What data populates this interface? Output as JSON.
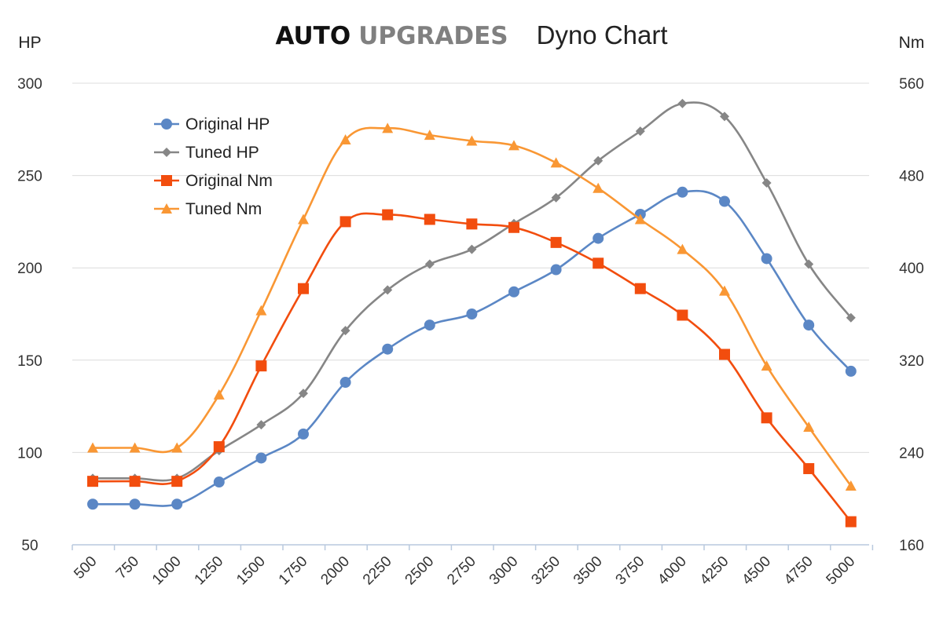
{
  "title": {
    "brand_part1": "AUTO",
    "brand_part2": "UPGRADES",
    "subtitle": "Dyno Chart",
    "brand_part1_color": "#111111",
    "brand_part2_color": "#808080"
  },
  "chart_data": {
    "type": "line",
    "title": "AUTO UPGRADES Dyno Chart",
    "xlabel": "",
    "ylabel": "HP",
    "y2label": "Nm",
    "x": [
      500,
      750,
      1000,
      1250,
      1500,
      1750,
      2000,
      2250,
      2500,
      2750,
      3000,
      3250,
      3500,
      3750,
      4000,
      4250,
      4500,
      4750,
      5000
    ],
    "x_tick_labels": [
      "500",
      "750",
      "1000",
      "1250",
      "1500",
      "1750",
      "2000",
      "2250",
      "2500",
      "2750",
      "3000",
      "3250",
      "3500",
      "3750",
      "4000",
      "4250",
      "4500",
      "4750",
      "5000"
    ],
    "ylim": [
      50,
      300
    ],
    "y_ticks": [
      "50",
      "100",
      "150",
      "200",
      "250",
      "300"
    ],
    "y2lim": [
      160,
      560
    ],
    "y2_ticks": [
      "160",
      "240",
      "320",
      "400",
      "480",
      "560"
    ],
    "grid": true,
    "legend_position": "top-left",
    "series": [
      {
        "name": "Original HP",
        "axis": "left",
        "color": "#5b87c5",
        "marker": "circle",
        "values": [
          72,
          72,
          72,
          84,
          97,
          110,
          138,
          156,
          169,
          175,
          187,
          199,
          216,
          229,
          241,
          236,
          205,
          169,
          144
        ]
      },
      {
        "name": "Tuned HP",
        "axis": "left",
        "color": "#868686",
        "marker": "diamond",
        "values": [
          86,
          86,
          86,
          101,
          115,
          132,
          166,
          188,
          202,
          210,
          224,
          238,
          258,
          274,
          289,
          282,
          246,
          202,
          173
        ]
      },
      {
        "name": "Original Nm",
        "axis": "right",
        "color": "#f24d0e",
        "marker": "square",
        "values": [
          215,
          215,
          215,
          245,
          315,
          382,
          440,
          446,
          442,
          438,
          435,
          422,
          404,
          382,
          359,
          325,
          270,
          226,
          180
        ]
      },
      {
        "name": "Tuned Nm",
        "axis": "right",
        "color": "#f99734",
        "marker": "triangle",
        "values": [
          244,
          244,
          244,
          290,
          363,
          442,
          511,
          521,
          515,
          510,
          506,
          491,
          469,
          442,
          416,
          380,
          315,
          262,
          211
        ]
      }
    ]
  }
}
